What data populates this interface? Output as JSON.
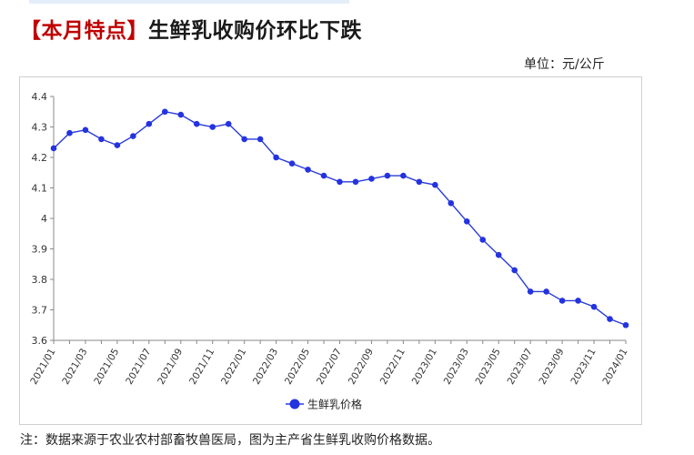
{
  "title": {
    "highlight": "【本月特点】",
    "text": "生鲜乳收购价环比下跌"
  },
  "unit_label": "单位：元/公斤",
  "note": "注：数据来源于农业农村部畜牧兽医局，图为主产省生鲜乳收购价格数据。",
  "colors": {
    "title_highlight": "#c00000",
    "series": "#2a3bdb",
    "marker": "#2433e0"
  },
  "chart_data": {
    "type": "line",
    "title": "",
    "xlabel": "",
    "ylabel": "",
    "ylim": [
      3.6,
      4.4
    ],
    "yticks": [
      "3.6",
      "3.7",
      "3.8",
      "3.9",
      "4",
      "4.1",
      "4.2",
      "4.3",
      "4.4"
    ],
    "grid": false,
    "legend_position": "bottom",
    "x": [
      "2021/01",
      "2021/02",
      "2021/03",
      "2021/04",
      "2021/05",
      "2021/06",
      "2021/07",
      "2021/08",
      "2021/09",
      "2021/10",
      "2021/11",
      "2021/12",
      "2022/01",
      "2022/02",
      "2022/03",
      "2022/04",
      "2022/05",
      "2022/06",
      "2022/07",
      "2022/08",
      "2022/09",
      "2022/10",
      "2022/11",
      "2022/12",
      "2023/01",
      "2023/02",
      "2023/03",
      "2023/04",
      "2023/05",
      "2023/06",
      "2023/07",
      "2023/08",
      "2023/09",
      "2023/10",
      "2023/11",
      "2023/12",
      "2024/01"
    ],
    "xtick_labels": [
      "2021/01",
      "2021/03",
      "2021/05",
      "2021/07",
      "2021/09",
      "2021/11",
      "2022/01",
      "2022/03",
      "2022/05",
      "2022/07",
      "2022/09",
      "2022/11",
      "2023/01",
      "2023/03",
      "2023/05",
      "2023/07",
      "2023/09",
      "2023/11",
      "2024/01"
    ],
    "series": [
      {
        "name": "生鲜乳价格",
        "values": [
          4.23,
          4.28,
          4.29,
          4.26,
          4.24,
          4.27,
          4.31,
          4.35,
          4.34,
          4.31,
          4.3,
          4.31,
          4.26,
          4.26,
          4.2,
          4.18,
          4.16,
          4.14,
          4.12,
          4.12,
          4.13,
          4.14,
          4.14,
          4.12,
          4.11,
          4.05,
          3.99,
          3.93,
          3.88,
          3.83,
          3.76,
          3.76,
          3.73,
          3.73,
          3.71,
          3.67,
          3.65
        ]
      }
    ]
  }
}
